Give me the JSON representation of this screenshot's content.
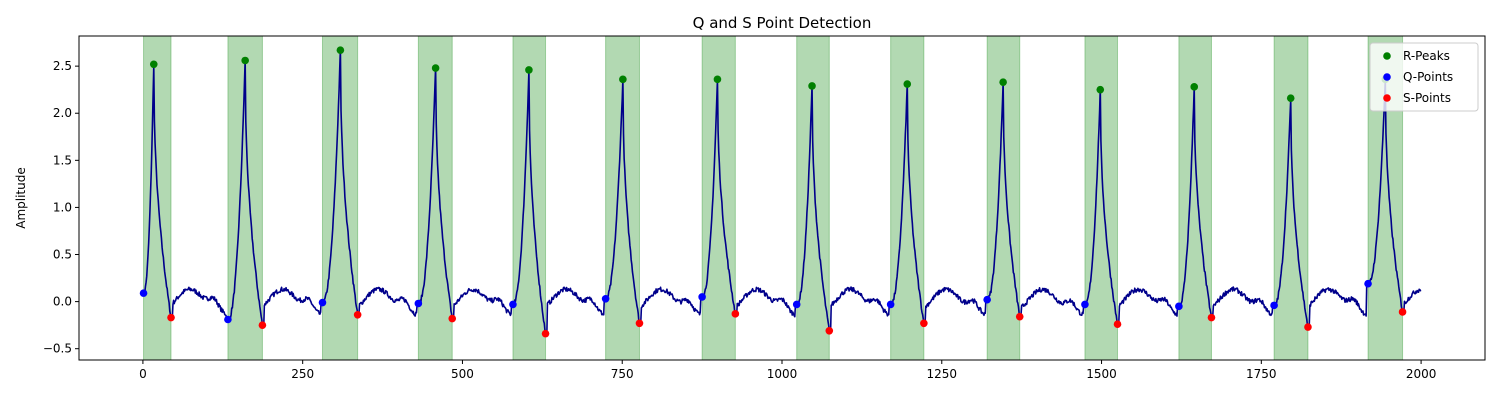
{
  "chart_data": {
    "type": "line",
    "title": "Q and S Point Detection",
    "xlabel": "",
    "ylabel": "Amplitude",
    "xlim": [
      -100,
      2100
    ],
    "ylim": [
      -0.62,
      2.82
    ],
    "xticks": [
      0,
      250,
      500,
      750,
      1000,
      1250,
      1500,
      1750,
      2000
    ],
    "yticks": [
      -0.5,
      0.0,
      0.5,
      1.0,
      1.5,
      2.0,
      2.5
    ],
    "legend_position": "top-right",
    "colors": {
      "signal": "#00008b",
      "r_peaks": "#008000",
      "q_points": "#0000ff",
      "s_points": "#ff0000",
      "span": "#008000"
    },
    "series": [
      {
        "name": "R-Peaks",
        "points": [
          [
            17,
            2.52
          ],
          [
            160,
            2.56
          ],
          [
            309,
            2.67
          ],
          [
            458,
            2.48
          ],
          [
            604,
            2.46
          ],
          [
            751,
            2.36
          ],
          [
            899,
            2.36
          ],
          [
            1047,
            2.29
          ],
          [
            1196,
            2.31
          ],
          [
            1346,
            2.33
          ],
          [
            1498,
            2.25
          ],
          [
            1645,
            2.28
          ],
          [
            1796,
            2.16
          ],
          [
            1944,
            2.36
          ]
        ]
      },
      {
        "name": "Q-Points",
        "points": [
          [
            1,
            0.09
          ],
          [
            133,
            -0.19
          ],
          [
            281,
            -0.01
          ],
          [
            431,
            -0.02
          ],
          [
            579,
            -0.03
          ],
          [
            724,
            0.03
          ],
          [
            875,
            0.05
          ],
          [
            1023,
            -0.03
          ],
          [
            1170,
            -0.03
          ],
          [
            1321,
            0.02
          ],
          [
            1474,
            -0.03
          ],
          [
            1621,
            -0.05
          ],
          [
            1770,
            -0.04
          ],
          [
            1917,
            0.19
          ]
        ]
      },
      {
        "name": "S-Points",
        "points": [
          [
            44,
            -0.17
          ],
          [
            187,
            -0.25
          ],
          [
            336,
            -0.14
          ],
          [
            484,
            -0.18
          ],
          [
            630,
            -0.34
          ],
          [
            777,
            -0.23
          ],
          [
            927,
            -0.13
          ],
          [
            1074,
            -0.31
          ],
          [
            1222,
            -0.23
          ],
          [
            1372,
            -0.16
          ],
          [
            1525,
            -0.24
          ],
          [
            1672,
            -0.17
          ],
          [
            1823,
            -0.27
          ],
          [
            1971,
            -0.11
          ]
        ]
      }
    ],
    "highlight_spans": [
      [
        1,
        44
      ],
      [
        133,
        187
      ],
      [
        281,
        336
      ],
      [
        431,
        484
      ],
      [
        579,
        630
      ],
      [
        724,
        777
      ],
      [
        875,
        927
      ],
      [
        1023,
        1074
      ],
      [
        1170,
        1222
      ],
      [
        1321,
        1372
      ],
      [
        1474,
        1525
      ],
      [
        1621,
        1672
      ],
      [
        1770,
        1823
      ],
      [
        1917,
        1971
      ]
    ],
    "signal_length": 2000
  }
}
